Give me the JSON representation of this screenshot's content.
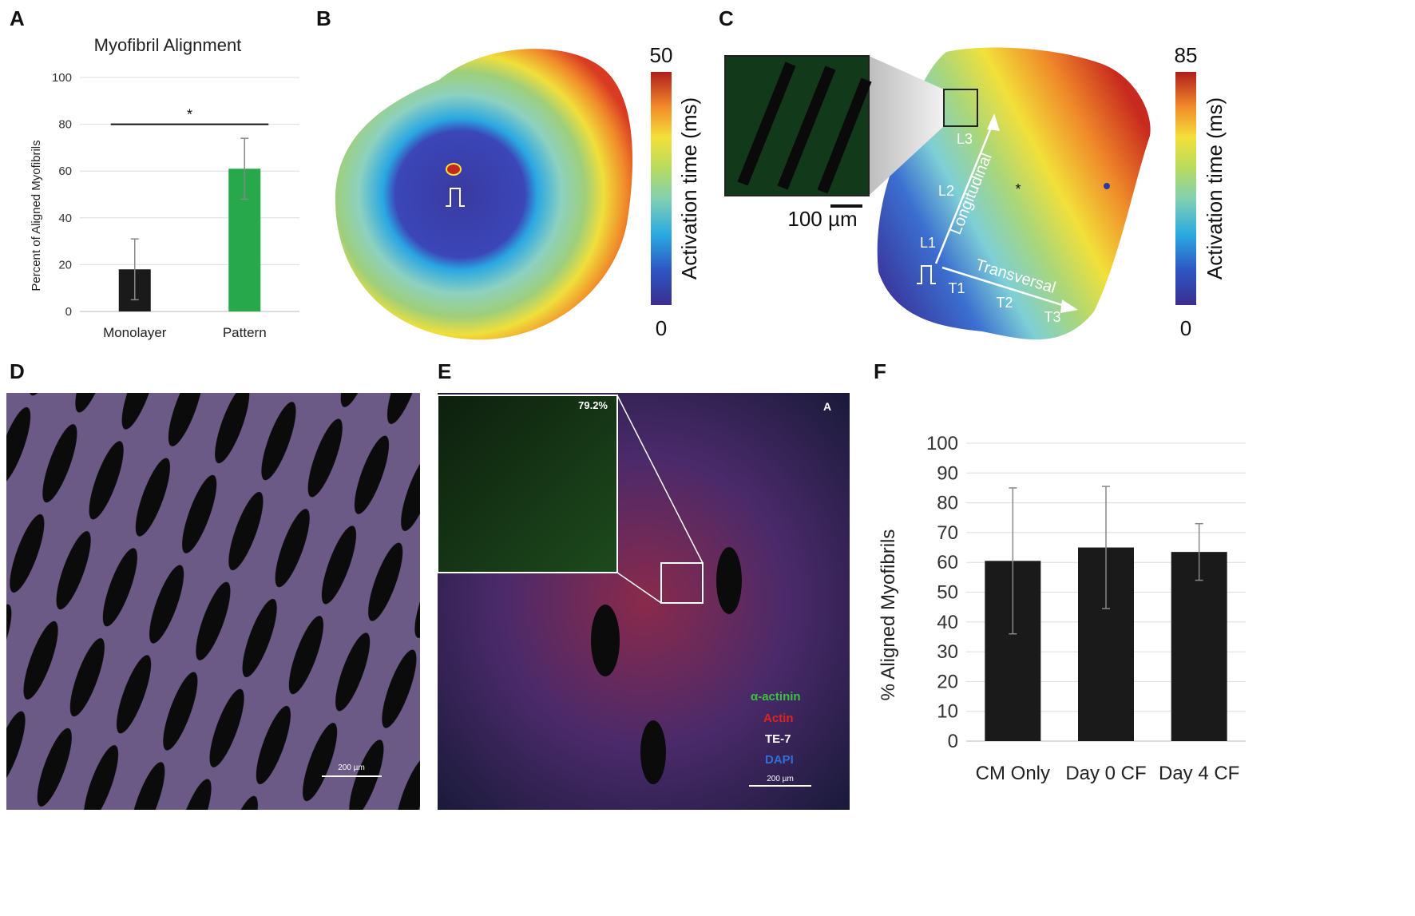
{
  "panels": {
    "a": "A",
    "b": "B",
    "c": "C",
    "d": "D",
    "e": "E",
    "f": "F"
  },
  "panel_b": {
    "cbar_max": "50",
    "cbar_min": "0",
    "cbar_label": "Activation time (ms)"
  },
  "panel_c": {
    "cbar_max": "85",
    "cbar_min": "0",
    "cbar_label": "Activation time (ms)",
    "scalebar": "100 µm",
    "axis_long": "Longitudinal",
    "axis_trans": "Transversal",
    "points": [
      "L1",
      "L2",
      "L3",
      "T1",
      "T2",
      "T3"
    ],
    "asterisk": "*"
  },
  "panel_d": {
    "scalebar": "200 µm"
  },
  "panel_e": {
    "inset_value": "79.2%",
    "corner_label": "A",
    "legend": [
      "α-actinin",
      "Actin",
      "TE-7",
      "DAPI"
    ],
    "legend_colors": [
      "#3cc23c",
      "#e0241c",
      "#ffffff",
      "#2f6fd6"
    ],
    "scalebar": "200 µm"
  },
  "colors": {
    "black_bar": "#1a1a1a",
    "green_bar": "#27a94b"
  },
  "chart_data": [
    {
      "type": "bar",
      "title": "Myofibril Alignment",
      "ylabel": "Percent of Aligned Myofibrils",
      "categories": [
        "Monolayer",
        "Pattern"
      ],
      "values": [
        18,
        61
      ],
      "errors": [
        13,
        13
      ],
      "ylim": [
        0,
        100
      ],
      "yticks": [
        "0",
        "20",
        "40",
        "60",
        "80",
        "100"
      ],
      "significance": "*",
      "grid": true
    },
    {
      "type": "bar",
      "title": "",
      "ylabel": "% Aligned Myofibrils",
      "categories": [
        "CM Only",
        "Day 0 CF",
        "Day 4 CF"
      ],
      "values": [
        60.5,
        65,
        63.5
      ],
      "errors": [
        24.5,
        20.5,
        9.5
      ],
      "ylim": [
        0,
        100
      ],
      "yticks": [
        "0",
        "10",
        "20",
        "30",
        "40",
        "50",
        "60",
        "70",
        "80",
        "90",
        "100"
      ],
      "grid": true
    }
  ]
}
